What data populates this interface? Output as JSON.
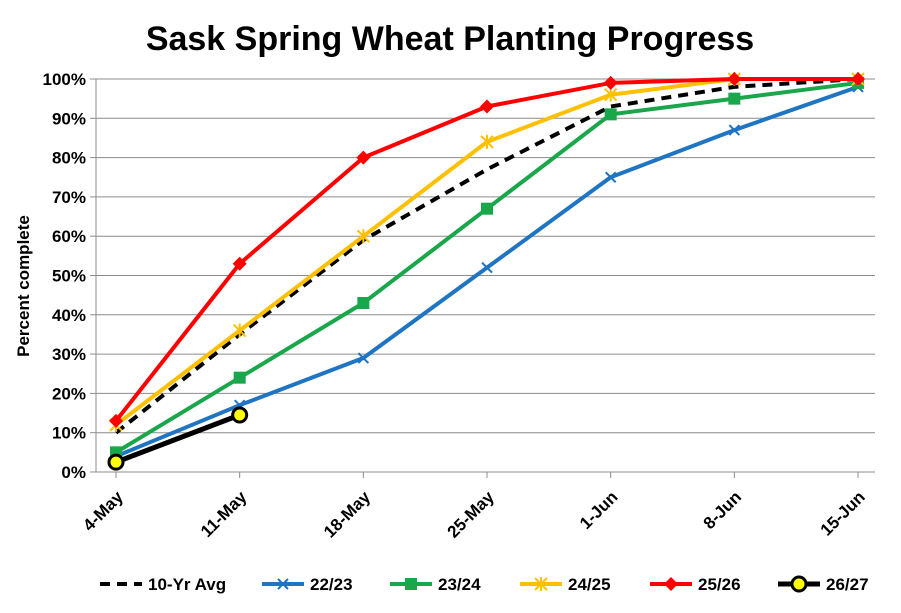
{
  "chart_data": {
    "type": "line",
    "title": "Sask Spring Wheat Planting Progress",
    "xlabel": "",
    "ylabel": "Percent complete",
    "categories": [
      "4-May",
      "11-May",
      "18-May",
      "25-May",
      "1-Jun",
      "8-Jun",
      "15-Jun"
    ],
    "ylim": [
      0,
      100
    ],
    "yticks": [
      "0%",
      "10%",
      "20%",
      "30%",
      "40%",
      "50%",
      "60%",
      "70%",
      "80%",
      "90%",
      "100%"
    ],
    "grid": true,
    "legend_position": "bottom",
    "series": [
      {
        "name": "10-Yr Avg",
        "color": "#000000",
        "dash": true,
        "marker": "none",
        "values": [
          10,
          35,
          59,
          77,
          93,
          98,
          100
        ]
      },
      {
        "name": "22/23",
        "color": "#1f75c1",
        "marker": "x",
        "values": [
          4,
          17,
          29,
          52,
          75,
          87,
          98
        ]
      },
      {
        "name": "23/24",
        "color": "#1aa64b",
        "marker": "square",
        "values": [
          5,
          24,
          43,
          67,
          91,
          95,
          99
        ]
      },
      {
        "name": "24/25",
        "color": "#ffc000",
        "marker": "star",
        "values": [
          12,
          36,
          60,
          84,
          96,
          100,
          100
        ]
      },
      {
        "name": "25/26",
        "color": "#ff0000",
        "marker": "diamond",
        "values": [
          13,
          53,
          80,
          93,
          99,
          100,
          100
        ]
      },
      {
        "name": "26/27",
        "color": "#000000",
        "marker": "circle-yellow",
        "values": [
          2.5,
          14.5,
          null,
          null,
          null,
          null,
          null
        ]
      }
    ]
  }
}
